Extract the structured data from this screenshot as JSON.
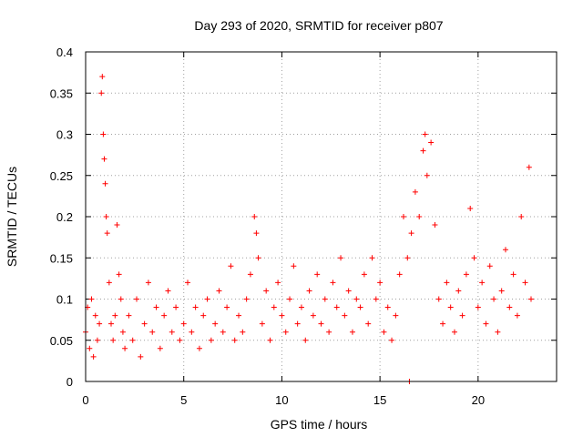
{
  "chart_data": {
    "type": "scatter",
    "title": "Day 293 of 2020, SRMTID for receiver p807",
    "xlabel": "GPS time / hours",
    "ylabel": "SRMTID / TECUs",
    "xlim": [
      0,
      24
    ],
    "ylim": [
      0,
      0.4
    ],
    "xticks": [
      0,
      5,
      10,
      15,
      20
    ],
    "xtick_labels": [
      "0",
      "5",
      "10",
      "15",
      "20"
    ],
    "yticks": [
      0,
      0.05,
      0.1,
      0.15,
      0.2,
      0.25,
      0.3,
      0.35,
      0.4
    ],
    "ytick_labels": [
      "0",
      "0.05",
      "0.1",
      "0.15",
      "0.2",
      "0.25",
      "0.3",
      "0.35",
      "0.4"
    ],
    "grid": true,
    "marker": "plus",
    "color": "#ff0000",
    "series": [
      {
        "name": "SRMTID",
        "points": [
          [
            0.0,
            0.06
          ],
          [
            0.1,
            0.09
          ],
          [
            0.2,
            0.04
          ],
          [
            0.3,
            0.1
          ],
          [
            0.4,
            0.03
          ],
          [
            0.5,
            0.08
          ],
          [
            0.6,
            0.05
          ],
          [
            0.7,
            0.07
          ],
          [
            0.8,
            0.35
          ],
          [
            0.85,
            0.37
          ],
          [
            0.9,
            0.3
          ],
          [
            0.95,
            0.27
          ],
          [
            1.0,
            0.24
          ],
          [
            1.05,
            0.2
          ],
          [
            1.1,
            0.18
          ],
          [
            1.2,
            0.12
          ],
          [
            1.3,
            0.07
          ],
          [
            1.4,
            0.05
          ],
          [
            1.5,
            0.08
          ],
          [
            1.6,
            0.19
          ],
          [
            1.7,
            0.13
          ],
          [
            1.8,
            0.1
          ],
          [
            1.9,
            0.06
          ],
          [
            2.0,
            0.04
          ],
          [
            2.2,
            0.08
          ],
          [
            2.4,
            0.05
          ],
          [
            2.6,
            0.1
          ],
          [
            2.8,
            0.03
          ],
          [
            3.0,
            0.07
          ],
          [
            3.2,
            0.12
          ],
          [
            3.4,
            0.06
          ],
          [
            3.6,
            0.09
          ],
          [
            3.8,
            0.04
          ],
          [
            4.0,
            0.08
          ],
          [
            4.2,
            0.11
          ],
          [
            4.4,
            0.06
          ],
          [
            4.6,
            0.09
          ],
          [
            4.8,
            0.05
          ],
          [
            5.0,
            0.07
          ],
          [
            5.2,
            0.12
          ],
          [
            5.4,
            0.06
          ],
          [
            5.6,
            0.09
          ],
          [
            5.8,
            0.04
          ],
          [
            6.0,
            0.08
          ],
          [
            6.2,
            0.1
          ],
          [
            6.4,
            0.05
          ],
          [
            6.6,
            0.07
          ],
          [
            6.8,
            0.11
          ],
          [
            7.0,
            0.06
          ],
          [
            7.2,
            0.09
          ],
          [
            7.4,
            0.14
          ],
          [
            7.6,
            0.05
          ],
          [
            7.8,
            0.08
          ],
          [
            8.0,
            0.06
          ],
          [
            8.2,
            0.1
          ],
          [
            8.4,
            0.13
          ],
          [
            8.6,
            0.2
          ],
          [
            8.7,
            0.18
          ],
          [
            8.8,
            0.15
          ],
          [
            9.0,
            0.07
          ],
          [
            9.2,
            0.11
          ],
          [
            9.4,
            0.05
          ],
          [
            9.6,
            0.09
          ],
          [
            9.8,
            0.12
          ],
          [
            10.0,
            0.08
          ],
          [
            10.2,
            0.06
          ],
          [
            10.4,
            0.1
          ],
          [
            10.6,
            0.14
          ],
          [
            10.8,
            0.07
          ],
          [
            11.0,
            0.09
          ],
          [
            11.2,
            0.05
          ],
          [
            11.4,
            0.11
          ],
          [
            11.6,
            0.08
          ],
          [
            11.8,
            0.13
          ],
          [
            12.0,
            0.07
          ],
          [
            12.2,
            0.1
          ],
          [
            12.4,
            0.06
          ],
          [
            12.6,
            0.12
          ],
          [
            12.8,
            0.09
          ],
          [
            13.0,
            0.15
          ],
          [
            13.2,
            0.08
          ],
          [
            13.4,
            0.11
          ],
          [
            13.6,
            0.06
          ],
          [
            13.8,
            0.1
          ],
          [
            14.0,
            0.09
          ],
          [
            14.2,
            0.13
          ],
          [
            14.4,
            0.07
          ],
          [
            14.6,
            0.15
          ],
          [
            14.8,
            0.1
          ],
          [
            15.0,
            0.12
          ],
          [
            15.2,
            0.06
          ],
          [
            15.4,
            0.09
          ],
          [
            15.6,
            0.05
          ],
          [
            15.8,
            0.08
          ],
          [
            16.0,
            0.13
          ],
          [
            16.2,
            0.2
          ],
          [
            16.4,
            0.15
          ],
          [
            16.6,
            0.18
          ],
          [
            16.8,
            0.23
          ],
          [
            17.0,
            0.2
          ],
          [
            17.2,
            0.28
          ],
          [
            17.3,
            0.3
          ],
          [
            17.4,
            0.25
          ],
          [
            17.6,
            0.29
          ],
          [
            17.8,
            0.19
          ],
          [
            18.0,
            0.1
          ],
          [
            18.2,
            0.07
          ],
          [
            18.4,
            0.12
          ],
          [
            18.6,
            0.09
          ],
          [
            18.8,
            0.06
          ],
          [
            19.0,
            0.11
          ],
          [
            19.2,
            0.08
          ],
          [
            19.4,
            0.13
          ],
          [
            19.6,
            0.21
          ],
          [
            19.8,
            0.15
          ],
          [
            20.0,
            0.09
          ],
          [
            20.2,
            0.12
          ],
          [
            20.4,
            0.07
          ],
          [
            20.6,
            0.14
          ],
          [
            20.8,
            0.1
          ],
          [
            21.0,
            0.06
          ],
          [
            21.2,
            0.11
          ],
          [
            21.4,
            0.16
          ],
          [
            21.6,
            0.09
          ],
          [
            21.8,
            0.13
          ],
          [
            22.0,
            0.08
          ],
          [
            22.2,
            0.2
          ],
          [
            22.4,
            0.12
          ],
          [
            22.6,
            0.26
          ],
          [
            22.7,
            0.1
          ],
          [
            16.5,
            0.0
          ]
        ]
      }
    ]
  }
}
